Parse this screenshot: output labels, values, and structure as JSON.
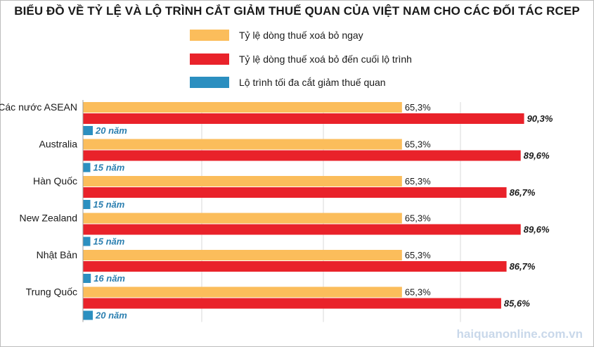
{
  "chart_data": {
    "type": "bar",
    "title": "BIỂU ĐỒ VỀ TỶ LỆ VÀ LỘ TRÌNH CẮT GIẢM THUẾ QUAN CỦA VIỆT NAM CHO CÁC ĐỐI TÁC RCEP",
    "categories": [
      "Các nước ASEAN",
      "Australia",
      "Hàn Quốc",
      "New Zealand",
      "Nhật Bản",
      "Trung Quốc"
    ],
    "series": [
      {
        "name": "Tỷ lệ dòng thuế xoá bỏ ngay",
        "color": "#fbbd5b",
        "values": [
          65.3,
          65.3,
          65.3,
          65.3,
          65.3,
          65.3
        ],
        "labels": [
          "65,3%",
          "65,3%",
          "65,3%",
          "65,3%",
          "65,3%",
          "65,3%"
        ]
      },
      {
        "name": "Tỷ lệ dòng thuế xoá bỏ đến cuối lộ trình",
        "color": "#e9222a",
        "values": [
          90.3,
          89.6,
          86.7,
          89.6,
          86.7,
          85.6
        ],
        "labels": [
          "90,3%",
          "89,6%",
          "86,7%",
          "89,6%",
          "86,7%",
          "85,6%"
        ]
      },
      {
        "name": "Lộ trình tối đa cắt giảm thuế quan",
        "color": "#2b8fc0",
        "values": [
          20,
          15,
          15,
          15,
          16,
          20
        ],
        "labels": [
          "20 năm",
          "15 năm",
          "15 năm",
          "15 năm",
          "16 năm",
          "20 năm"
        ]
      }
    ],
    "grid": true,
    "legend_position": "top-center"
  },
  "source": "haiquanonline.com.vn"
}
